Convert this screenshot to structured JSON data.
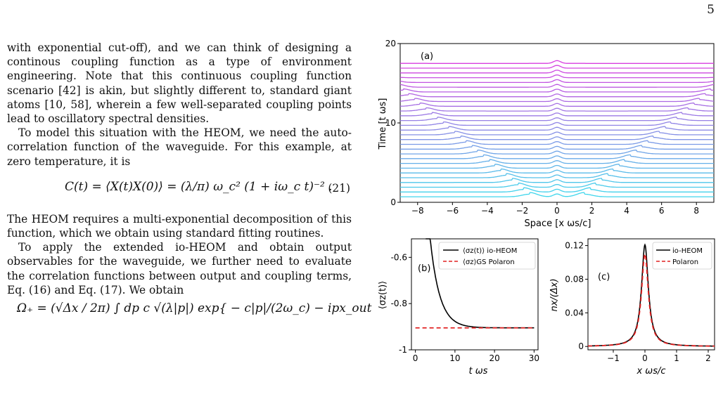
{
  "page_number": "5",
  "text": {
    "p1": "with exponential cut-off), and we can think of designing a continous coupling function as a type of environment engineering. Note that this continuous coupling function scenario [42] is akin, but slightly different to, standard giant atoms [10, 58], wherein a few well-separated coupling points lead to oscillatory spectral densities.",
    "p2": "To model this situation with the HEOM, we need the auto-correlation function of the waveguide. For this example, at zero temperature, it is",
    "eq21": "C(t) = ⟨X(t)X(0)⟩ = (λ/π) ω_c² (1 + iω_c t)⁻² .",
    "eq21_num": "(21)",
    "p3": "The HEOM requires a multi-exponential decomposition of this function, which we obtain using standard fitting routines.",
    "p4": "To apply the extended io-HEOM and obtain output observables for the waveguide, we further need to evaluate the correlation functions between output and coupling terms, Eq. (16) and Eq. (17). We obtain",
    "eq22": "Ω₊ = (√Δx / 2π) ∫ dp c √(λ|p|) exp{ − c|p|/(2ω_c) − ipx_out"
  },
  "figure": {
    "panel_a": {
      "label": "(a)",
      "ylabel": "Time [t ωs]",
      "xlabel": "Space [x ωs/c]",
      "xticks": [
        "−8",
        "−6",
        "−4",
        "−2",
        "0",
        "2",
        "4",
        "6",
        "8"
      ],
      "yticks": [
        "0",
        "10",
        "20"
      ],
      "colors": {
        "start": "#3fd6ec",
        "end": "#d83fe0"
      }
    },
    "panel_b": {
      "label": "(b)",
      "ylabel": "⟨σz(t)⟩",
      "xlabel": "t ωs",
      "xticks": [
        "0",
        "10",
        "20",
        "30"
      ],
      "yticks": [
        "-0.6",
        "-0.8",
        "-1"
      ],
      "legend": [
        "⟨σz(t)⟩ io-HEOM",
        "⟨σz⟩GS Polaron"
      ]
    },
    "panel_c": {
      "label": "(c)",
      "ylabel": "nx/(Δx)",
      "xlabel": "x ωs/c",
      "xticks": [
        "−1",
        "0",
        "1",
        "2"
      ],
      "yticks": [
        "0",
        "0.04",
        "0.08",
        "0.12"
      ],
      "legend": [
        "io-HEOM",
        "Polaron"
      ]
    }
  },
  "chart_data": [
    {
      "type": "line",
      "panel": "(a)",
      "xlabel": "Space [x ωs/c]",
      "ylabel": "Time [t ωs]",
      "xlim": [
        -9,
        9
      ],
      "ylim": [
        0,
        20
      ],
      "series_description": "Stacked output-photon density profiles n_x at successive times, offset vertically",
      "time_offsets": [
        0.7,
        1.3,
        1.9,
        2.5,
        3.1,
        3.7,
        4.3,
        4.9,
        5.5,
        6.1,
        6.7,
        7.3,
        7.9,
        8.5,
        9.1,
        9.7,
        10.3,
        10.9,
        11.5,
        12.1,
        12.7,
        13.3,
        13.9,
        14.5,
        15.1,
        15.7,
        16.3,
        16.9,
        17.5
      ]
    },
    {
      "type": "line",
      "panel": "(b)",
      "xlabel": "t ωs",
      "ylabel": "⟨σz(t)⟩",
      "xlim": [
        -1,
        31
      ],
      "ylim": [
        -1,
        -0.52
      ],
      "series": [
        {
          "name": "⟨σz(t)⟩ io-HEOM",
          "style": "solid",
          "color": "#000000",
          "x": [
            3,
            4,
            5,
            6,
            7,
            8,
            10,
            12,
            15,
            20,
            25,
            30
          ],
          "values": [
            -0.52,
            -0.64,
            -0.73,
            -0.79,
            -0.83,
            -0.86,
            -0.89,
            -0.9,
            -0.905,
            -0.905,
            -0.905,
            -0.905
          ]
        },
        {
          "name": "⟨σz⟩GS Polaron",
          "style": "dashed",
          "color": "#e02020",
          "x": [
            0,
            30
          ],
          "values": [
            -0.905,
            -0.905
          ]
        }
      ]
    },
    {
      "type": "line",
      "panel": "(c)",
      "xlabel": "x ωs/c",
      "ylabel": "nx/(Δx)",
      "xlim": [
        -1.8,
        2.2
      ],
      "ylim": [
        -0.004,
        0.128
      ],
      "series": [
        {
          "name": "io-HEOM",
          "style": "solid",
          "color": "#000000",
          "x": [
            -1.8,
            -1.2,
            -0.8,
            -0.5,
            -0.3,
            -0.15,
            -0.05,
            0,
            0.05,
            0.15,
            0.3,
            0.5,
            0.8,
            1.2,
            2.2
          ],
          "values": [
            0.001,
            0.002,
            0.005,
            0.012,
            0.028,
            0.06,
            0.1,
            0.121,
            0.1,
            0.06,
            0.028,
            0.012,
            0.005,
            0.002,
            0.001
          ]
        },
        {
          "name": "Polaron",
          "style": "dashed",
          "color": "#e02020",
          "x": [
            -1.8,
            -1.2,
            -0.8,
            -0.5,
            -0.3,
            -0.15,
            -0.05,
            0,
            0.05,
            0.15,
            0.3,
            0.5,
            0.8,
            1.2,
            2.2
          ],
          "values": [
            0.0005,
            0.0015,
            0.004,
            0.01,
            0.024,
            0.054,
            0.092,
            0.11,
            0.092,
            0.054,
            0.024,
            0.01,
            0.004,
            0.0015,
            0.0005
          ]
        }
      ]
    }
  ]
}
